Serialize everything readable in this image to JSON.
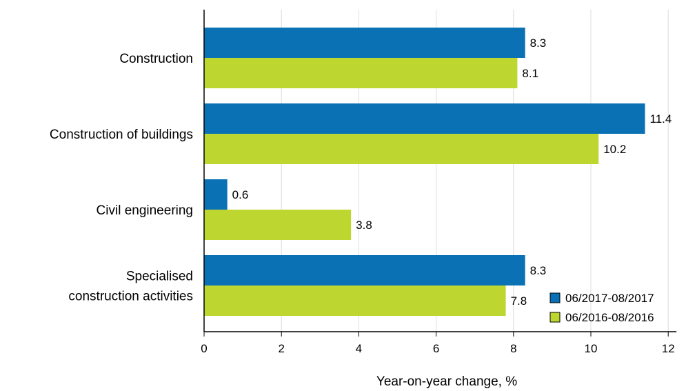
{
  "chart_data": {
    "type": "bar",
    "orientation": "horizontal",
    "categories": [
      [
        "Construction"
      ],
      [
        "Construction of buildings"
      ],
      [
        "Civil engineering"
      ],
      [
        "Specialised",
        "construction activities"
      ]
    ],
    "series": [
      {
        "name": "06/2017-08/2017",
        "color": "#0a71b4",
        "values": [
          8.3,
          11.4,
          0.6,
          8.3
        ],
        "labels": [
          "8.3",
          "11.4",
          "0.6",
          "8.3"
        ]
      },
      {
        "name": "06/2016-08/2016",
        "color": "#bed630",
        "values": [
          8.1,
          10.2,
          3.8,
          7.8
        ],
        "labels": [
          "8.1",
          "10.2",
          "3.8",
          "7.8"
        ]
      }
    ],
    "xlabel": "Year-on-year change, %",
    "ylabel": "",
    "xlim": [
      0,
      12
    ],
    "xticks": [
      0,
      2,
      4,
      6,
      8,
      10,
      12
    ],
    "grid": "vertical",
    "legend_position": "bottom-right"
  }
}
